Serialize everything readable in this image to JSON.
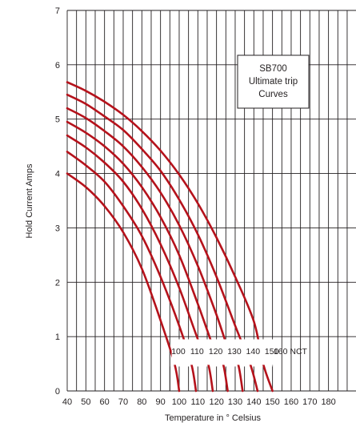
{
  "chart_data": {
    "type": "line",
    "title": [
      "SB700",
      "Ultimate trip",
      "Curves"
    ],
    "xlabel": "Temperature in ° Celsius",
    "ylabel": "Hold Current Amps",
    "xlim": [
      40,
      180
    ],
    "ylim": [
      0,
      7
    ],
    "x_ticks": [
      "40",
      "50",
      "60",
      "70",
      "80",
      "90",
      "100",
      "110",
      "120",
      "130",
      "140",
      "150",
      "160",
      "170",
      "180"
    ],
    "y_ticks": [
      "0",
      "1",
      "2",
      "3",
      "4",
      "5",
      "6",
      "7"
    ],
    "grid": true,
    "line_color": "#b5121b",
    "curve_label_row": [
      "100",
      "110",
      "120",
      "130",
      "140",
      "150",
      "160 NCT"
    ],
    "series": [
      {
        "name": "100",
        "points": [
          [
            40,
            4.0
          ],
          [
            50,
            3.75
          ],
          [
            60,
            3.4
          ],
          [
            70,
            2.92
          ],
          [
            80,
            2.25
          ],
          [
            90,
            1.3
          ],
          [
            97.5,
            0.5
          ],
          [
            100,
            0
          ]
        ]
      },
      {
        "name": "110",
        "points": [
          [
            40,
            4.4
          ],
          [
            50,
            4.15
          ],
          [
            60,
            3.85
          ],
          [
            70,
            3.4
          ],
          [
            80,
            2.85
          ],
          [
            90,
            2.1
          ],
          [
            100,
            1.2
          ],
          [
            106.5,
            0.5
          ],
          [
            109,
            0
          ]
        ]
      },
      {
        "name": "120",
        "points": [
          [
            40,
            4.7
          ],
          [
            50,
            4.48
          ],
          [
            60,
            4.2
          ],
          [
            70,
            3.85
          ],
          [
            80,
            3.35
          ],
          [
            90,
            2.7
          ],
          [
            100,
            1.9
          ],
          [
            110,
            0.95
          ],
          [
            115.5,
            0.5
          ],
          [
            118,
            0
          ]
        ]
      },
      {
        "name": "130",
        "points": [
          [
            40,
            4.95
          ],
          [
            50,
            4.75
          ],
          [
            60,
            4.5
          ],
          [
            70,
            4.18
          ],
          [
            80,
            3.75
          ],
          [
            90,
            3.2
          ],
          [
            100,
            2.5
          ],
          [
            110,
            1.6
          ],
          [
            120,
            0.65
          ],
          [
            123.5,
            0.5
          ],
          [
            126,
            0
          ]
        ]
      },
      {
        "name": "140",
        "points": [
          [
            40,
            5.2
          ],
          [
            50,
            5.02
          ],
          [
            60,
            4.78
          ],
          [
            70,
            4.5
          ],
          [
            80,
            4.12
          ],
          [
            90,
            3.65
          ],
          [
            100,
            3.05
          ],
          [
            110,
            2.3
          ],
          [
            120,
            1.4
          ],
          [
            128,
            0.6
          ],
          [
            131.5,
            0.5
          ],
          [
            134,
            0
          ]
        ]
      },
      {
        "name": "150",
        "points": [
          [
            40,
            5.45
          ],
          [
            50,
            5.28
          ],
          [
            60,
            5.05
          ],
          [
            70,
            4.8
          ],
          [
            80,
            4.45
          ],
          [
            90,
            4.05
          ],
          [
            100,
            3.52
          ],
          [
            110,
            2.88
          ],
          [
            120,
            2.1
          ],
          [
            130,
            1.2
          ],
          [
            138,
            0.5
          ],
          [
            142,
            0
          ]
        ]
      },
      {
        "name": "160 NCT",
        "points": [
          [
            40,
            5.68
          ],
          [
            50,
            5.52
          ],
          [
            60,
            5.32
          ],
          [
            70,
            5.08
          ],
          [
            80,
            4.78
          ],
          [
            90,
            4.42
          ],
          [
            100,
            3.98
          ],
          [
            110,
            3.45
          ],
          [
            120,
            2.82
          ],
          [
            130,
            2.1
          ],
          [
            140,
            1.28
          ],
          [
            145,
            0.5
          ],
          [
            150,
            0
          ]
        ]
      }
    ]
  }
}
